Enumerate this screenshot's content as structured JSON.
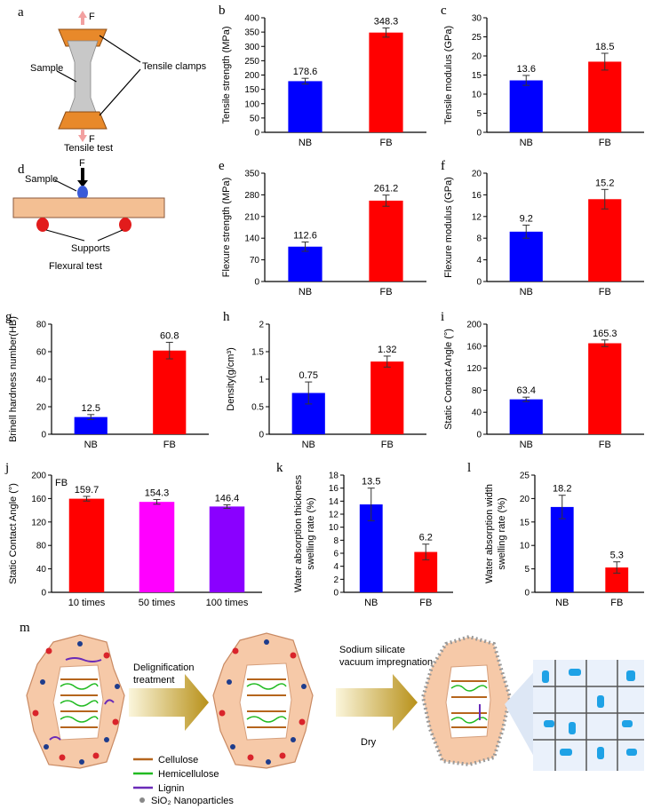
{
  "panel_a": {
    "letter": "a",
    "force_label": "F",
    "sample_label": "Sample",
    "clamps_label": "Tensile clamps",
    "caption": "Tensile test"
  },
  "panel_d": {
    "letter": "d",
    "force_label": "F",
    "sample_label": "Sample",
    "supports_label": "Supports",
    "caption": "Flexural test"
  },
  "panel_m": {
    "letter": "m",
    "step1_line1": "Delignification",
    "step1_line2": "treatment",
    "step2_line1": "Sodium silicate",
    "step2_line2": "vacuum impregnation",
    "step2_line3": "Dry",
    "legend": [
      {
        "label": "Cellulose",
        "color": "#b5651d"
      },
      {
        "label": "Hemicellulose",
        "color": "#22bb22"
      },
      {
        "label": "Lignin",
        "color": "#6a2bb8"
      },
      {
        "label": "SiO₂ Nanoparticles",
        "color": "#888888"
      }
    ]
  },
  "chart_data": [
    {
      "id": "b",
      "type": "bar",
      "letter": "b",
      "categories": [
        "NB",
        "FB"
      ],
      "values": [
        178.6,
        348.3
      ],
      "value_labels": [
        "178.6",
        "348.3"
      ],
      "errors": [
        10,
        16
      ],
      "colors": [
        "#0000ff",
        "#ff0000"
      ],
      "ylabel": "Tensile strength (MPa)",
      "ylim": [
        0,
        400
      ],
      "yticks": [
        0,
        50,
        100,
        150,
        200,
        250,
        300,
        350,
        400
      ]
    },
    {
      "id": "c",
      "type": "bar",
      "letter": "c",
      "categories": [
        "NB",
        "FB"
      ],
      "values": [
        13.6,
        18.5
      ],
      "value_labels": [
        "13.6",
        "18.5"
      ],
      "errors": [
        1.3,
        2.2
      ],
      "colors": [
        "#0000ff",
        "#ff0000"
      ],
      "ylabel": "Tensile modulus  (GPa)",
      "ylim": [
        0,
        30
      ],
      "yticks": [
        0,
        5,
        10,
        15,
        20,
        25,
        30
      ]
    },
    {
      "id": "e",
      "type": "bar",
      "letter": "e",
      "categories": [
        "NB",
        "FB"
      ],
      "values": [
        112.6,
        261.2
      ],
      "value_labels": [
        "112.6",
        "261.2"
      ],
      "errors": [
        15,
        18
      ],
      "colors": [
        "#0000ff",
        "#ff0000"
      ],
      "ylabel": "Flexure strength (MPa)",
      "ylim": [
        0,
        350
      ],
      "yticks": [
        0,
        70,
        140,
        210,
        280,
        350
      ]
    },
    {
      "id": "f",
      "type": "bar",
      "letter": "f",
      "categories": [
        "NB",
        "FB"
      ],
      "values": [
        9.2,
        15.2
      ],
      "value_labels": [
        "9.2",
        "15.2"
      ],
      "errors": [
        1.2,
        1.8
      ],
      "colors": [
        "#0000ff",
        "#ff0000"
      ],
      "ylabel": "Flexure modulus  (GPa)",
      "ylim": [
        0,
        20
      ],
      "yticks": [
        0,
        4,
        8,
        12,
        16,
        20
      ]
    },
    {
      "id": "g",
      "type": "bar",
      "letter": "g",
      "categories": [
        "NB",
        "FB"
      ],
      "values": [
        12.5,
        60.8
      ],
      "value_labels": [
        "12.5",
        "60.8"
      ],
      "errors": [
        1.8,
        6
      ],
      "colors": [
        "#0000ff",
        "#ff0000"
      ],
      "ylabel": "Brinell hardness number(HB)",
      "ylim": [
        0,
        80
      ],
      "yticks": [
        0,
        20,
        40,
        60,
        80
      ]
    },
    {
      "id": "h",
      "type": "bar",
      "letter": "h",
      "categories": [
        "NB",
        "FB"
      ],
      "values": [
        0.75,
        1.32
      ],
      "value_labels": [
        "0.75",
        "1.32"
      ],
      "errors": [
        0.2,
        0.1
      ],
      "colors": [
        "#0000ff",
        "#ff0000"
      ],
      "ylabel": "Density(g/cm³)",
      "ylim": [
        0,
        2
      ],
      "yticks": [
        0.0,
        0.5,
        1.0,
        1.5,
        2.0
      ]
    },
    {
      "id": "i",
      "type": "bar",
      "letter": "i",
      "categories": [
        "NB",
        "FB"
      ],
      "values": [
        63.4,
        165.3
      ],
      "value_labels": [
        "63.4",
        "165.3"
      ],
      "errors": [
        4,
        6
      ],
      "colors": [
        "#0000ff",
        "#ff0000"
      ],
      "ylabel": "Static Contact Angle  (°)",
      "ylim": [
        0,
        200
      ],
      "yticks": [
        0,
        40,
        80,
        120,
        160,
        200
      ]
    },
    {
      "id": "j",
      "type": "bar",
      "letter": "j",
      "inset_label": "FB",
      "categories": [
        "10 times",
        "50 times",
        "100 times"
      ],
      "values": [
        159.7,
        154.3,
        146.4
      ],
      "value_labels": [
        "159.7",
        "154.3",
        "146.4"
      ],
      "errors": [
        4,
        4,
        3
      ],
      "colors": [
        "#ff0000",
        "#ff00ff",
        "#8a00ff"
      ],
      "ylabel": "Static Contact Angle  (°)",
      "ylim": [
        0,
        200
      ],
      "yticks": [
        0,
        40,
        80,
        120,
        160,
        200
      ]
    },
    {
      "id": "k",
      "type": "bar",
      "letter": "k",
      "categories": [
        "NB",
        "FB"
      ],
      "values": [
        13.5,
        6.2
      ],
      "value_labels": [
        "13.5",
        "6.2"
      ],
      "errors": [
        2.5,
        1.2
      ],
      "colors": [
        "#0000ff",
        "#ff0000"
      ],
      "ylabel": "Water absorption thickness",
      "ylabel2": "swelling rate  (%)",
      "ylim": [
        0,
        18
      ],
      "yticks": [
        0,
        2,
        4,
        6,
        8,
        10,
        12,
        14,
        16,
        18
      ]
    },
    {
      "id": "l",
      "type": "bar",
      "letter": "l",
      "categories": [
        "NB",
        "FB"
      ],
      "values": [
        18.2,
        5.3
      ],
      "value_labels": [
        "18.2",
        "5.3"
      ],
      "errors": [
        2.5,
        1.2
      ],
      "colors": [
        "#0000ff",
        "#ff0000"
      ],
      "ylabel": "Water absorption width",
      "ylabel2": "swelling rate  (%)",
      "ylim": [
        0,
        25
      ],
      "yticks": [
        0,
        5,
        10,
        15,
        20,
        25
      ]
    }
  ]
}
